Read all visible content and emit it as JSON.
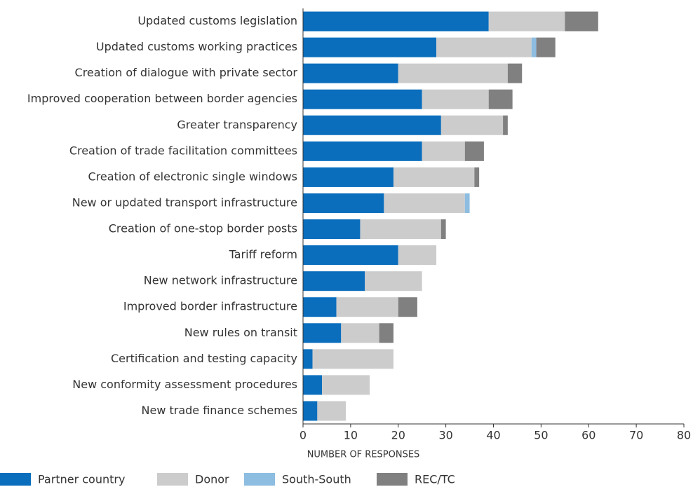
{
  "chart_data": {
    "type": "stacked-barh",
    "categories": [
      "Updated customs legislation",
      "Updated customs working practices",
      "Creation of dialogue with private sector",
      "Improved cooperation between border agencies",
      "Greater transparency",
      "Creation of trade facilitation committees",
      "Creation of electronic single windows",
      "New or updated transport infrastructure",
      "Creation of one-stop border posts",
      "Tariff reform",
      "New network infrastructure",
      "Improved border infrastructure",
      "New rules on transit",
      "Certification and testing capacity",
      "New conformity assessment procedures",
      "New trade finance schemes"
    ],
    "series": [
      {
        "name": "Partner country",
        "color": "#0a6ebd",
        "values": [
          39,
          28,
          20,
          25,
          29,
          25,
          19,
          17,
          12,
          20,
          13,
          7,
          8,
          2,
          4,
          3
        ]
      },
      {
        "name": "Donor",
        "color": "#cccccc",
        "values": [
          16,
          20,
          23,
          14,
          13,
          9,
          17,
          17,
          17,
          8,
          12,
          13,
          8,
          17,
          10,
          6
        ]
      },
      {
        "name": "South-South",
        "color": "#8dbde0",
        "values": [
          0,
          1,
          0,
          0,
          0,
          0,
          0,
          1,
          0,
          0,
          0,
          0,
          0,
          0,
          0,
          0
        ]
      },
      {
        "name": "REC/TC",
        "color": "#808080",
        "values": [
          7,
          4,
          3,
          5,
          1,
          4,
          1,
          0,
          1,
          0,
          0,
          4,
          3,
          0,
          0,
          0
        ]
      }
    ],
    "x_label": "NUMBER OF RESPONSES",
    "xlim": [
      0,
      80
    ],
    "xticks": [
      0,
      10,
      20,
      30,
      40,
      50,
      60,
      70,
      80
    ],
    "legend": "bottom"
  }
}
